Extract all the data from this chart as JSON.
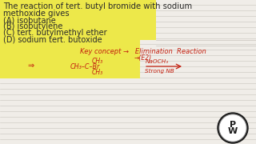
{
  "bg_color": "#f0ede8",
  "line_color": "#c8c4be",
  "highlight_color": "#ede84a",
  "text_color": "#2a2a2a",
  "red_color": "#c42010",
  "q_line1": "The reaction of tert. butyl bromide with sodium",
  "q_line2": "methoxide gives",
  "opt_A": "(A) isobutane",
  "opt_B": "(B) isobutylene",
  "opt_C": "(C) tert. butylmethyl ether",
  "opt_D": "(D) sodium tert. butoxide",
  "key_concept": "Key concept →   Elimination  Reaction",
  "arrow_e2": "→(E2)",
  "reagent_top": "NaOCH₃",
  "reagent_bot": "Strong NB",
  "logo_outer": "#1a1a1a",
  "logo_inner": "#ffffff",
  "logo_ring": "#888888"
}
